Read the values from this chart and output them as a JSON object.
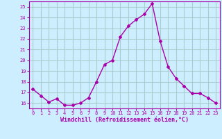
{
  "x": [
    0,
    1,
    2,
    3,
    4,
    5,
    6,
    7,
    8,
    9,
    10,
    11,
    12,
    13,
    14,
    15,
    16,
    17,
    18,
    19,
    20,
    21,
    22,
    23
  ],
  "y": [
    17.3,
    16.7,
    16.1,
    16.4,
    15.8,
    15.8,
    16.0,
    16.5,
    18.0,
    19.6,
    20.0,
    22.2,
    23.2,
    23.8,
    24.3,
    25.3,
    21.8,
    19.4,
    18.3,
    17.6,
    16.9,
    16.9,
    16.5,
    16.0
  ],
  "line_color": "#aa00aa",
  "marker": "D",
  "marker_size": 2,
  "bg_color": "#cceeff",
  "grid_color": "#aacccc",
  "xlabel": "Windchill (Refroidissement éolien,°C)",
  "xlabel_color": "#aa00aa",
  "tick_color": "#aa00aa",
  "ylim": [
    15.5,
    25.5
  ],
  "yticks": [
    16,
    17,
    18,
    19,
    20,
    21,
    22,
    23,
    24,
    25
  ],
  "xlim": [
    -0.5,
    23.5
  ],
  "xticks": [
    0,
    1,
    2,
    3,
    4,
    5,
    6,
    7,
    8,
    9,
    10,
    11,
    12,
    13,
    14,
    15,
    16,
    17,
    18,
    19,
    20,
    21,
    22,
    23
  ]
}
